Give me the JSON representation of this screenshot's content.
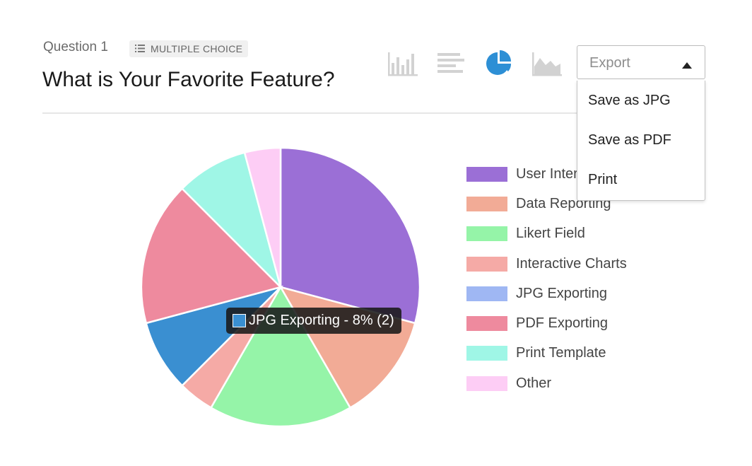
{
  "header": {
    "question_label": "Question 1",
    "type_badge": "MULTIPLE CHOICE",
    "title": "What is Your Favorite Feature?"
  },
  "chart_toggles": [
    {
      "name": "bar-chart-icon",
      "active": false
    },
    {
      "name": "horizontal-bar-chart-icon",
      "active": false
    },
    {
      "name": "pie-chart-icon",
      "active": true
    },
    {
      "name": "area-chart-icon",
      "active": false
    }
  ],
  "export": {
    "label": "Export",
    "items": [
      "Save as JPG",
      "Save as PDF",
      "Print"
    ]
  },
  "tooltip": {
    "text": "JPG Exporting - 8% (2)",
    "color": "#3a8fd1"
  },
  "legend_items": [
    {
      "label": "User Interface",
      "color": "#9b6fd6"
    },
    {
      "label": "Data Reporting",
      "color": "#f2ab96"
    },
    {
      "label": "Likert Field",
      "color": "#95f4a8"
    },
    {
      "label": "Interactive Charts",
      "color": "#f5aaa6"
    },
    {
      "label": "JPG Exporting",
      "color": "#9fb7f3"
    },
    {
      "label": "PDF Exporting",
      "color": "#ee8a9e"
    },
    {
      "label": "Print Template",
      "color": "#9ff6e6"
    },
    {
      "label": "Other",
      "color": "#fdcdf5"
    }
  ],
  "chart_data": {
    "type": "pie",
    "categories": [
      "User Interface",
      "Data Reporting",
      "Likert Field",
      "Interactive Charts",
      "JPG Exporting",
      "PDF Exporting",
      "Print Template",
      "Other"
    ],
    "values": [
      7,
      3,
      4,
      1,
      2,
      4,
      2,
      1
    ],
    "colors": [
      "#9b6fd6",
      "#f2ab96",
      "#95f4a8",
      "#f5aaa6",
      "#3a8fd1",
      "#ee8a9e",
      "#9ff6e6",
      "#fdcdf5"
    ],
    "highlighted": "JPG Exporting"
  }
}
